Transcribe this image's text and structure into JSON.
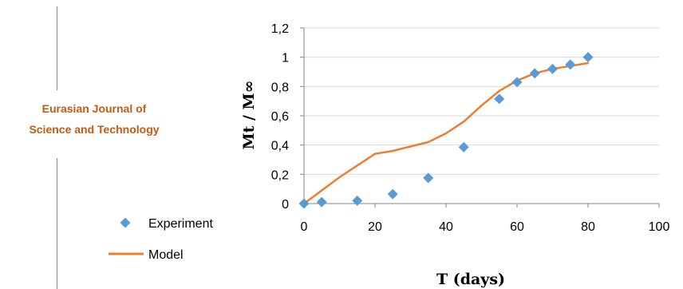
{
  "watermark": {
    "line1": "Eurasian Journal of",
    "line2": "Science and Technology"
  },
  "chart_data": {
    "type": "scatter",
    "xlabel": "T (days)",
    "ylabel": "Mt / M∞",
    "xlim": [
      0,
      100
    ],
    "ylim": [
      0,
      1.2
    ],
    "xticks": [
      0,
      20,
      40,
      60,
      80,
      100
    ],
    "yticks": [
      0,
      0.2,
      0.4,
      0.6,
      0.8,
      1,
      1.2
    ],
    "xtick_labels": [
      "0",
      "20",
      "40",
      "60",
      "80",
      "100"
    ],
    "ytick_labels": [
      "0",
      "0,2",
      "0,4",
      "0,6",
      "0,8",
      "1",
      "1,2"
    ],
    "grid": "horizontal",
    "legend_position": "left",
    "series": [
      {
        "name": "Experiment",
        "kind": "scatter",
        "marker": "diamond",
        "color": "#5b9bd5",
        "x": [
          0,
          5,
          15,
          25,
          35,
          45,
          55,
          60,
          65,
          70,
          75,
          80
        ],
        "y": [
          0.0,
          0.01,
          0.02,
          0.065,
          0.175,
          0.385,
          0.715,
          0.83,
          0.89,
          0.92,
          0.95,
          1.0
        ]
      },
      {
        "name": "Model",
        "kind": "line",
        "color": "#ed7d31",
        "x": [
          0,
          5,
          10,
          15,
          20,
          25,
          30,
          35,
          40,
          45,
          50,
          55,
          60,
          65,
          70,
          75,
          80
        ],
        "y": [
          0.0,
          0.09,
          0.18,
          0.26,
          0.34,
          0.36,
          0.39,
          0.42,
          0.48,
          0.56,
          0.67,
          0.77,
          0.84,
          0.89,
          0.92,
          0.94,
          0.96
        ]
      }
    ]
  }
}
